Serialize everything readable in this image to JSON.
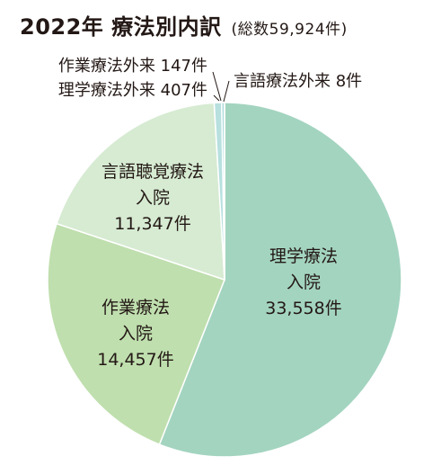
{
  "chart_data": {
    "type": "pie",
    "title": "2022年 療法別内訳",
    "subtitle": "(総数59,924件)",
    "total": 59924,
    "unit": "件",
    "slices": [
      {
        "label": "理学療法入院",
        "label_lines": [
          "理学療法",
          "入院",
          "33,558件"
        ],
        "value": 33558,
        "color": "#a3d4c0"
      },
      {
        "label": "作業療法入院",
        "label_lines": [
          "作業療法",
          "入院",
          "14,457件"
        ],
        "value": 14457,
        "color": "#bfdfae"
      },
      {
        "label": "言語聴覚療法入院",
        "label_lines": [
          "言語聴覚療法",
          "入院",
          "11,347件"
        ],
        "value": 11347,
        "color": "#d6ebd2"
      },
      {
        "label": "作業療法外来",
        "label_lines": [
          "作業療法外来 147件"
        ],
        "value": 147,
        "color": "#a9d9db"
      },
      {
        "label": "理学療法外来",
        "label_lines": [
          "理学療法外来 407件"
        ],
        "value": 407,
        "color": "#b7e0df"
      },
      {
        "label": "言語療法外来",
        "label_lines": [
          "言語療法外来 8件"
        ],
        "value": 8,
        "color": "#8fcbd0"
      }
    ]
  }
}
